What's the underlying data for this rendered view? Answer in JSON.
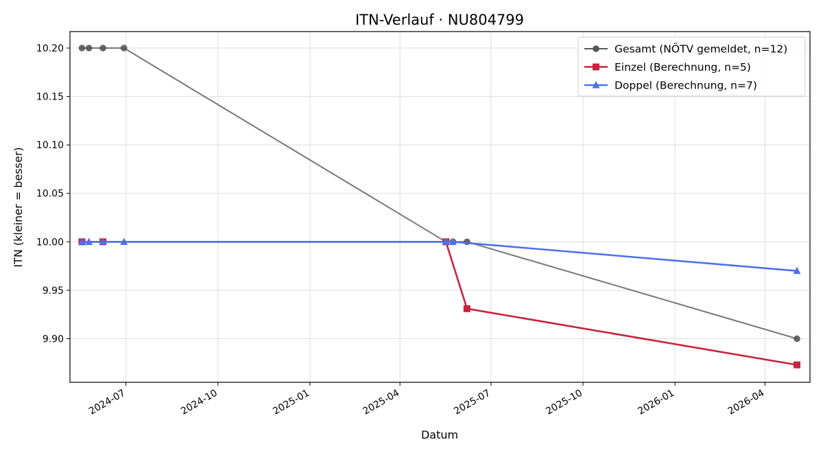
{
  "chart_data": {
    "type": "line",
    "title": "ITN-Verlauf · NU804799",
    "xlabel": "Datum",
    "ylabel": "ITN  (kleiner = besser)",
    "x_type": "date",
    "xlim": [
      "2024-05-06",
      "2026-05-16"
    ],
    "ylim": [
      9.855,
      10.217
    ],
    "y_ticks": [
      9.9,
      9.95,
      10.0,
      10.05,
      10.1,
      10.15,
      10.2
    ],
    "y_tick_labels": [
      "9.90",
      "9.95",
      "10.00",
      "10.05",
      "10.10",
      "10.15",
      "10.20"
    ],
    "x_ticks": [
      "2024-07-01",
      "2024-10-01",
      "2025-01-01",
      "2025-04-01",
      "2025-07-01",
      "2025-10-01",
      "2026-01-01",
      "2026-04-01"
    ],
    "x_tick_labels": [
      "2024-07",
      "2024-10",
      "2025-01",
      "2025-04",
      "2025-07",
      "2025-10",
      "2026-01",
      "2026-04"
    ],
    "grid": true,
    "legend_position": "top-right",
    "series": [
      {
        "name": "Gesamt (NÖTV gemeldet, n=12)",
        "color": "#555555",
        "marker": "circle",
        "points": [
          {
            "x": "2024-05-18",
            "y": 10.2
          },
          {
            "x": "2024-05-25",
            "y": 10.2
          },
          {
            "x": "2024-06-08",
            "y": 10.2
          },
          {
            "x": "2024-06-29",
            "y": 10.2
          },
          {
            "x": "2025-05-17",
            "y": 10.0
          },
          {
            "x": "2025-05-24",
            "y": 10.0
          },
          {
            "x": "2025-06-07",
            "y": 10.0
          },
          {
            "x": "2026-05-03",
            "y": 9.9
          }
        ]
      },
      {
        "name": "Einzel (Berechnung, n=5)",
        "color": "#c8243f",
        "marker": "square",
        "points": [
          {
            "x": "2024-05-18",
            "y": 10.0
          },
          {
            "x": "2024-06-08",
            "y": 10.0
          },
          {
            "x": "2025-05-17",
            "y": 10.0
          },
          {
            "x": "2025-06-07",
            "y": 9.931
          },
          {
            "x": "2026-05-03",
            "y": 9.873
          }
        ]
      },
      {
        "name": "Doppel (Berechnung, n=7)",
        "color": "#4f6ff0",
        "marker": "triangle",
        "points": [
          {
            "x": "2024-05-18",
            "y": 10.0
          },
          {
            "x": "2024-05-25",
            "y": 10.0
          },
          {
            "x": "2024-06-08",
            "y": 10.0
          },
          {
            "x": "2024-06-29",
            "y": 10.0
          },
          {
            "x": "2025-05-17",
            "y": 10.0
          },
          {
            "x": "2025-05-24",
            "y": 10.0
          },
          {
            "x": "2026-05-03",
            "y": 9.97
          }
        ]
      }
    ]
  }
}
